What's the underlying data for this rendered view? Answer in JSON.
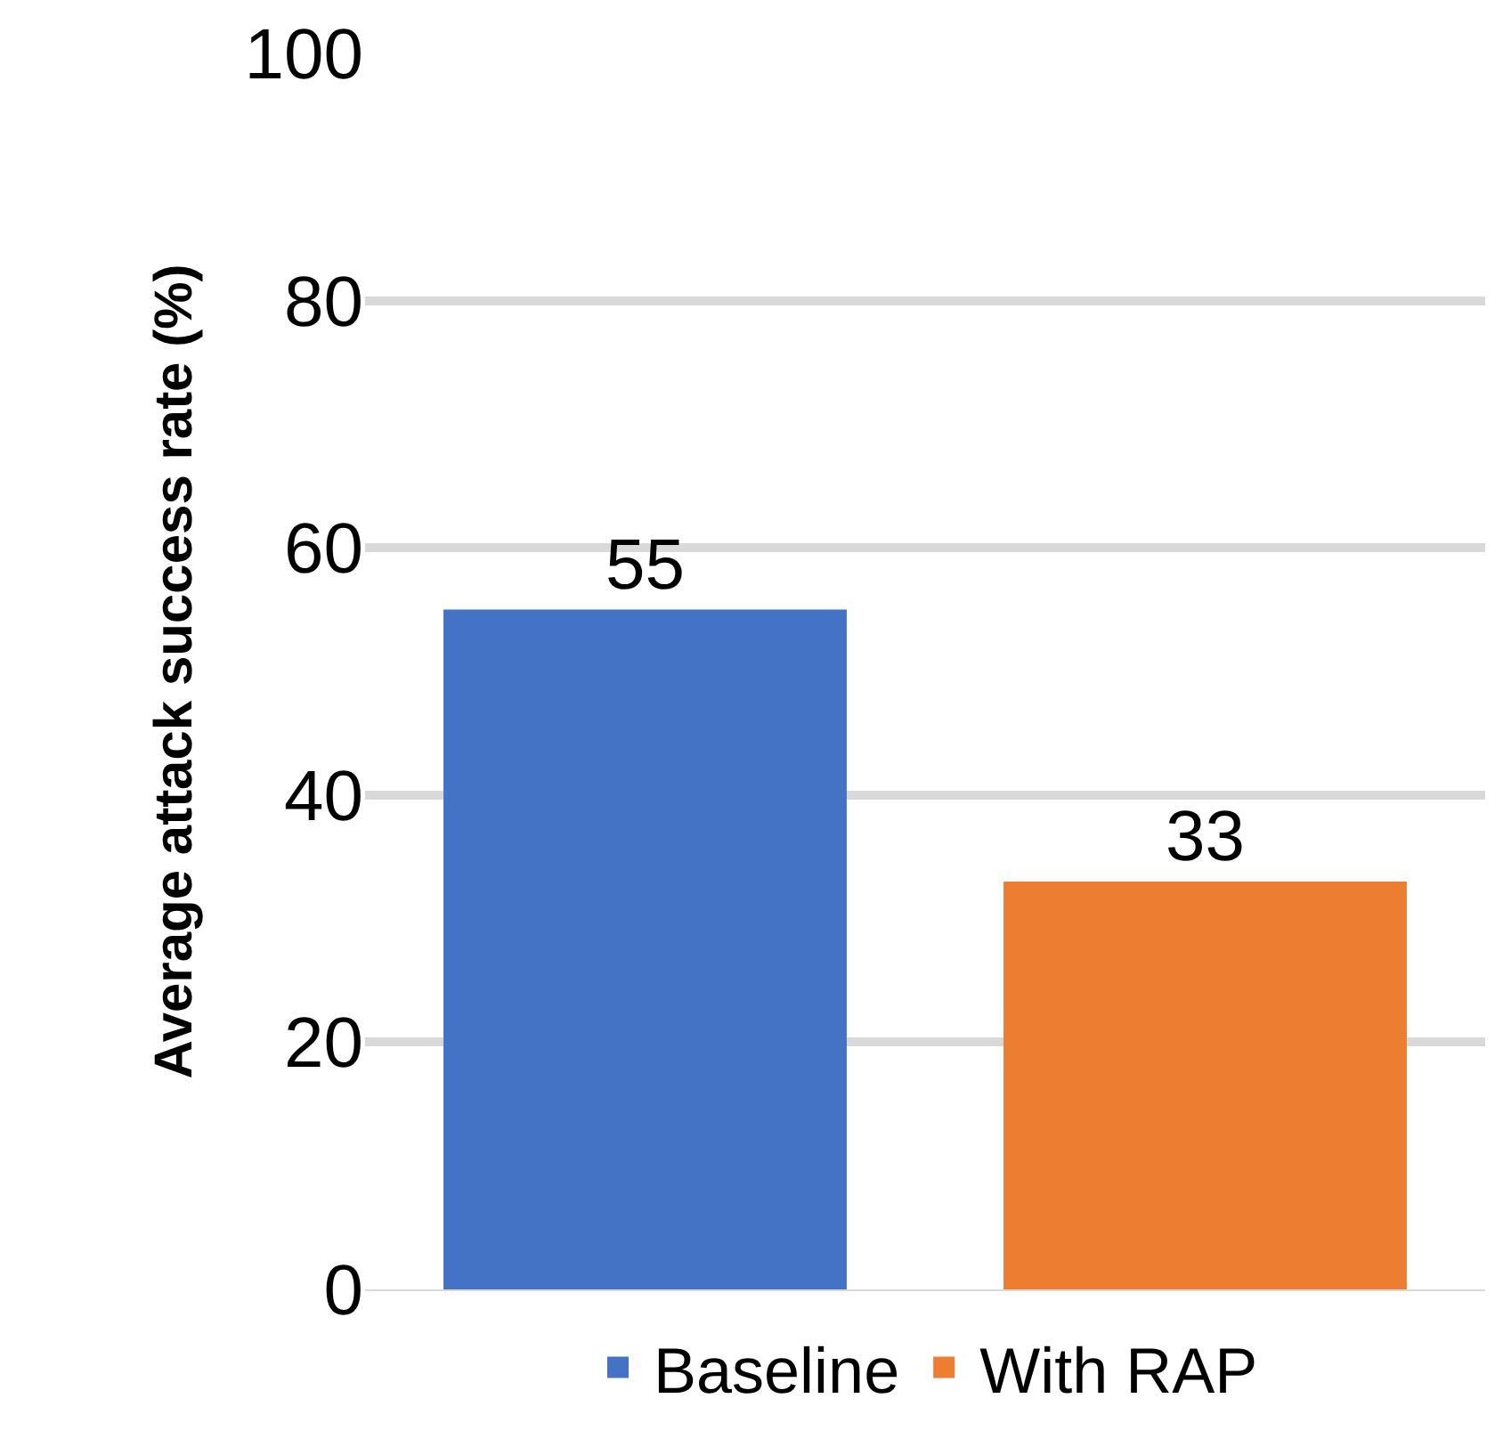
{
  "chart_data": {
    "type": "bar",
    "ylabel": "Average attack success rate (%)",
    "categories": [
      null,
      null
    ],
    "series": [
      {
        "name": "Baseline",
        "color": "#4472c4",
        "values": [
          55,
          null
        ]
      },
      {
        "name": "With RAP",
        "color": "#ed7d31",
        "values": [
          null,
          33
        ]
      }
    ],
    "ylim": [
      0,
      100
    ],
    "yticks": [
      0,
      20,
      40,
      60,
      80,
      100
    ],
    "grid": "y",
    "legend": "bottom",
    "data_labels": true,
    "tick_labels": "y"
  }
}
